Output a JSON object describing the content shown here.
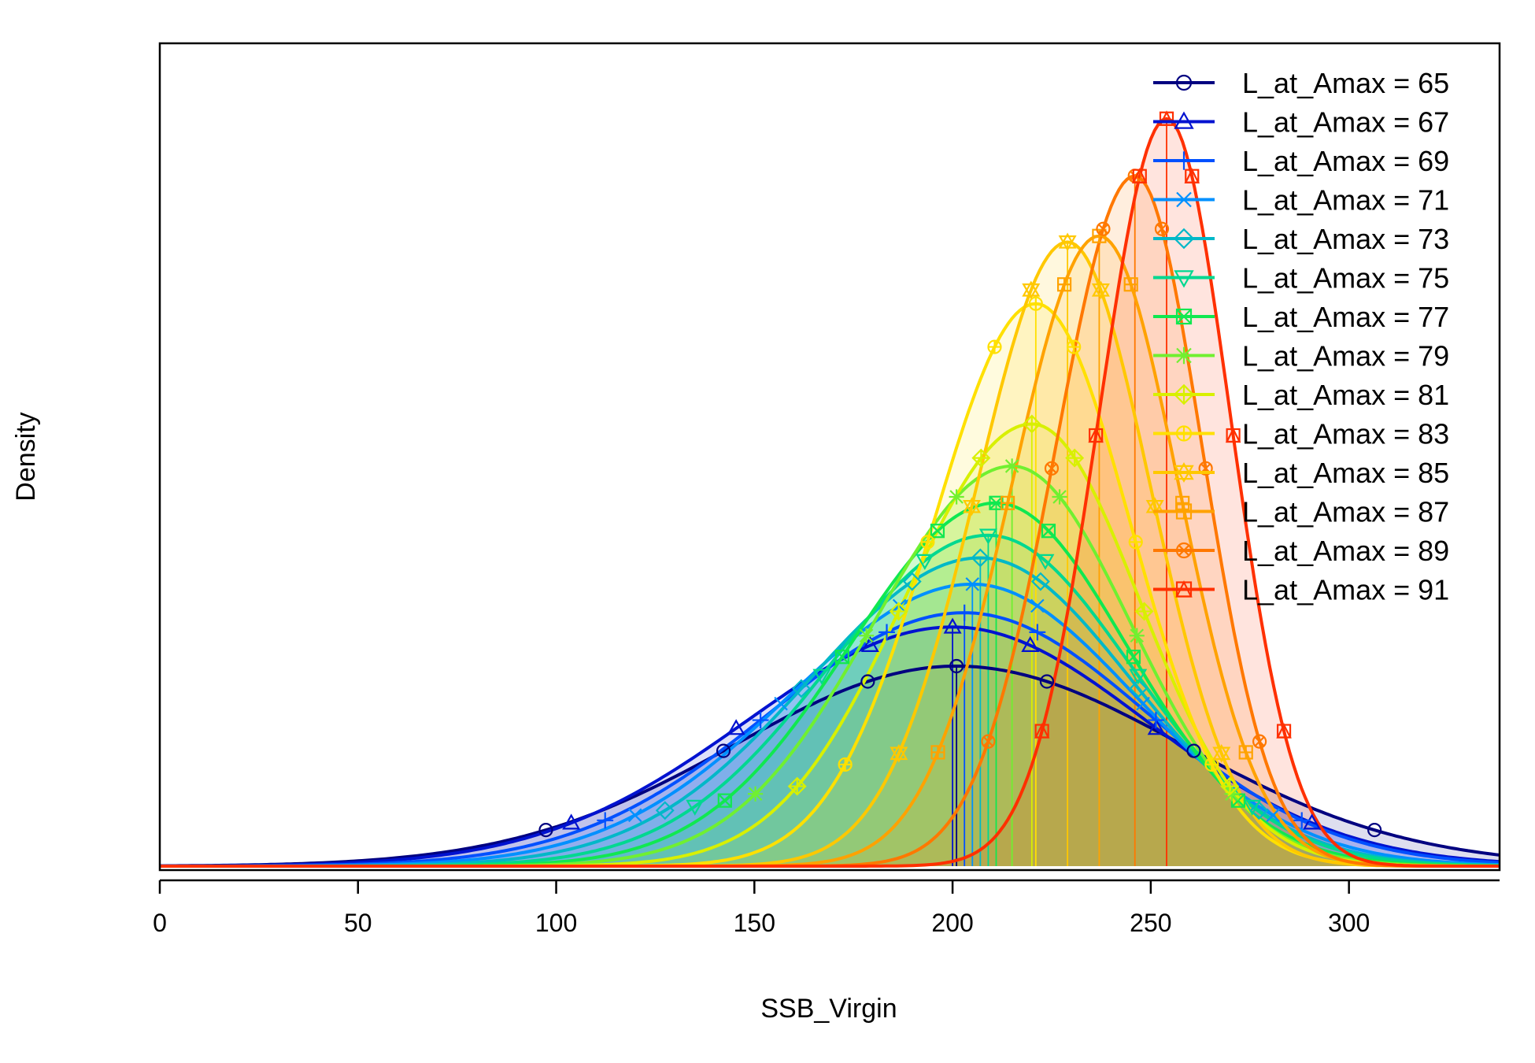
{
  "chart_data": {
    "type": "area",
    "title": "",
    "xlabel": "SSB_Virgin",
    "ylabel": "Density",
    "xlim": [
      0,
      338
    ],
    "xticks": [
      0,
      50,
      100,
      150,
      200,
      250,
      300
    ],
    "y_axis_ticks_shown": false,
    "grid": false,
    "legend_position": "top-right",
    "series": [
      {
        "name": "L_at_Amax = 65",
        "color": "#000080",
        "marker": "circle",
        "mean": 201,
        "peak": 0.266,
        "sd_left": 56,
        "sd_right": 57
      },
      {
        "name": "L_at_Amax = 67",
        "color": "#0012D0",
        "marker": "triangle-up",
        "mean": 200,
        "peak": 0.318,
        "sd_left": 52,
        "sd_right": 49
      },
      {
        "name": "L_at_Amax = 69",
        "color": "#0050FF",
        "marker": "plus",
        "mean": 203,
        "peak": 0.337,
        "sd_left": 49,
        "sd_right": 46
      },
      {
        "name": "L_at_Amax = 71",
        "color": "#0090FF",
        "marker": "cross",
        "mean": 205,
        "peak": 0.375,
        "sd_left": 46,
        "sd_right": 41
      },
      {
        "name": "L_at_Amax = 73",
        "color": "#00B8C8",
        "marker": "diamond",
        "mean": 207,
        "peak": 0.41,
        "sd_left": 43,
        "sd_right": 38
      },
      {
        "name": "L_at_Amax = 75",
        "color": "#00D890",
        "marker": "triangle-down",
        "mean": 209,
        "peak": 0.44,
        "sd_left": 40,
        "sd_right": 36
      },
      {
        "name": "L_at_Amax = 77",
        "color": "#10E850",
        "marker": "square-x",
        "mean": 211,
        "peak": 0.483,
        "sd_left": 37,
        "sd_right": 33
      },
      {
        "name": "L_at_Amax = 79",
        "color": "#70F030",
        "marker": "asterisk",
        "mean": 215,
        "peak": 0.532,
        "sd_left": 35,
        "sd_right": 30
      },
      {
        "name": "L_at_Amax = 81",
        "color": "#D8F000",
        "marker": "diamond-plus",
        "mean": 220,
        "peak": 0.588,
        "sd_left": 32,
        "sd_right": 27
      },
      {
        "name": "L_at_Amax = 83",
        "color": "#FFE000",
        "marker": "circle-plus",
        "mean": 221,
        "peak": 0.748,
        "sd_left": 26,
        "sd_right": 24
      },
      {
        "name": "L_at_Amax = 85",
        "color": "#FFC800",
        "marker": "star-of-david",
        "mean": 229,
        "peak": 0.83,
        "sd_left": 23,
        "sd_right": 21
      },
      {
        "name": "L_at_Amax = 87",
        "color": "#FFA200",
        "marker": "square-plus",
        "mean": 237,
        "peak": 0.838,
        "sd_left": 22,
        "sd_right": 20
      },
      {
        "name": "L_at_Amax = 89",
        "color": "#FF7800",
        "marker": "circle-x",
        "mean": 246,
        "peak": 0.918,
        "sd_left": 20,
        "sd_right": 17
      },
      {
        "name": "L_at_Amax = 91",
        "color": "#FF3000",
        "marker": "square-triangle",
        "mean": 254,
        "peak": 0.994,
        "sd_left": 17,
        "sd_right": 16
      }
    ]
  }
}
